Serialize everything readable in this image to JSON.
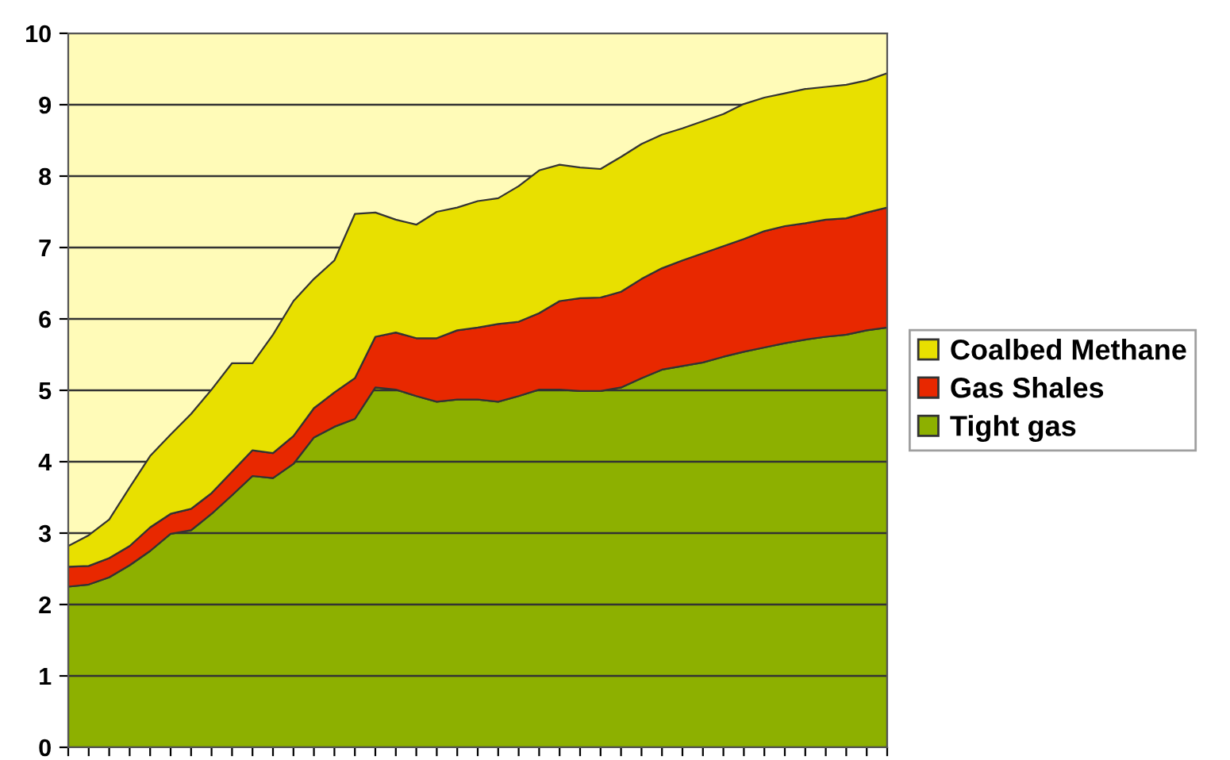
{
  "chart_data": {
    "type": "area",
    "stacked": true,
    "categories": [
      null,
      null,
      null,
      null,
      null,
      null,
      null,
      null,
      null,
      null,
      null,
      null,
      null,
      null,
      null,
      null,
      null,
      null,
      null,
      null,
      null,
      null,
      null,
      null,
      null,
      null,
      null,
      null,
      null,
      null,
      null,
      null,
      null,
      null,
      null,
      null,
      null,
      null,
      null,
      null,
      null
    ],
    "series": [
      {
        "name": "Tight gas",
        "color": "#8db000",
        "values": [
          2.25,
          2.28,
          2.38,
          2.55,
          2.75,
          2.99,
          3.04,
          3.27,
          3.53,
          3.8,
          3.77,
          3.97,
          4.34,
          4.49,
          4.6,
          5.04,
          5.01,
          4.92,
          4.84,
          4.87,
          4.87,
          4.84,
          4.92,
          5.01,
          5.01,
          4.99,
          4.99,
          5.04,
          5.17,
          5.29,
          5.34,
          5.39,
          5.47,
          5.54,
          5.6,
          5.66,
          5.71,
          5.75,
          5.78,
          5.84,
          5.88
        ]
      },
      {
        "name": "Gas Shales",
        "color": "#e82800",
        "values": [
          0.28,
          0.26,
          0.27,
          0.27,
          0.33,
          0.28,
          0.3,
          0.29,
          0.33,
          0.36,
          0.35,
          0.39,
          0.41,
          0.48,
          0.57,
          0.71,
          0.8,
          0.81,
          0.89,
          0.97,
          1.01,
          1.09,
          1.04,
          1.07,
          1.24,
          1.3,
          1.31,
          1.34,
          1.39,
          1.42,
          1.48,
          1.53,
          1.55,
          1.58,
          1.63,
          1.64,
          1.63,
          1.64,
          1.63,
          1.65,
          1.68
        ]
      },
      {
        "name": "Coalbed Methane",
        "color": "#e8e000",
        "values": [
          0.29,
          0.43,
          0.54,
          0.82,
          1.0,
          1.11,
          1.33,
          1.45,
          1.52,
          1.22,
          1.66,
          1.89,
          1.81,
          1.85,
          2.3,
          1.74,
          1.58,
          1.59,
          1.77,
          1.72,
          1.77,
          1.76,
          1.9,
          2.0,
          1.91,
          1.83,
          1.8,
          1.89,
          1.89,
          1.87,
          1.85,
          1.85,
          1.85,
          1.89,
          1.87,
          1.86,
          1.88,
          1.86,
          1.87,
          1.85,
          1.88
        ]
      }
    ],
    "ylim": [
      0,
      10
    ],
    "yticks": [
      0,
      1,
      2,
      3,
      4,
      5,
      6,
      7,
      8,
      9,
      10
    ],
    "grid": "y",
    "legend": "right"
  }
}
